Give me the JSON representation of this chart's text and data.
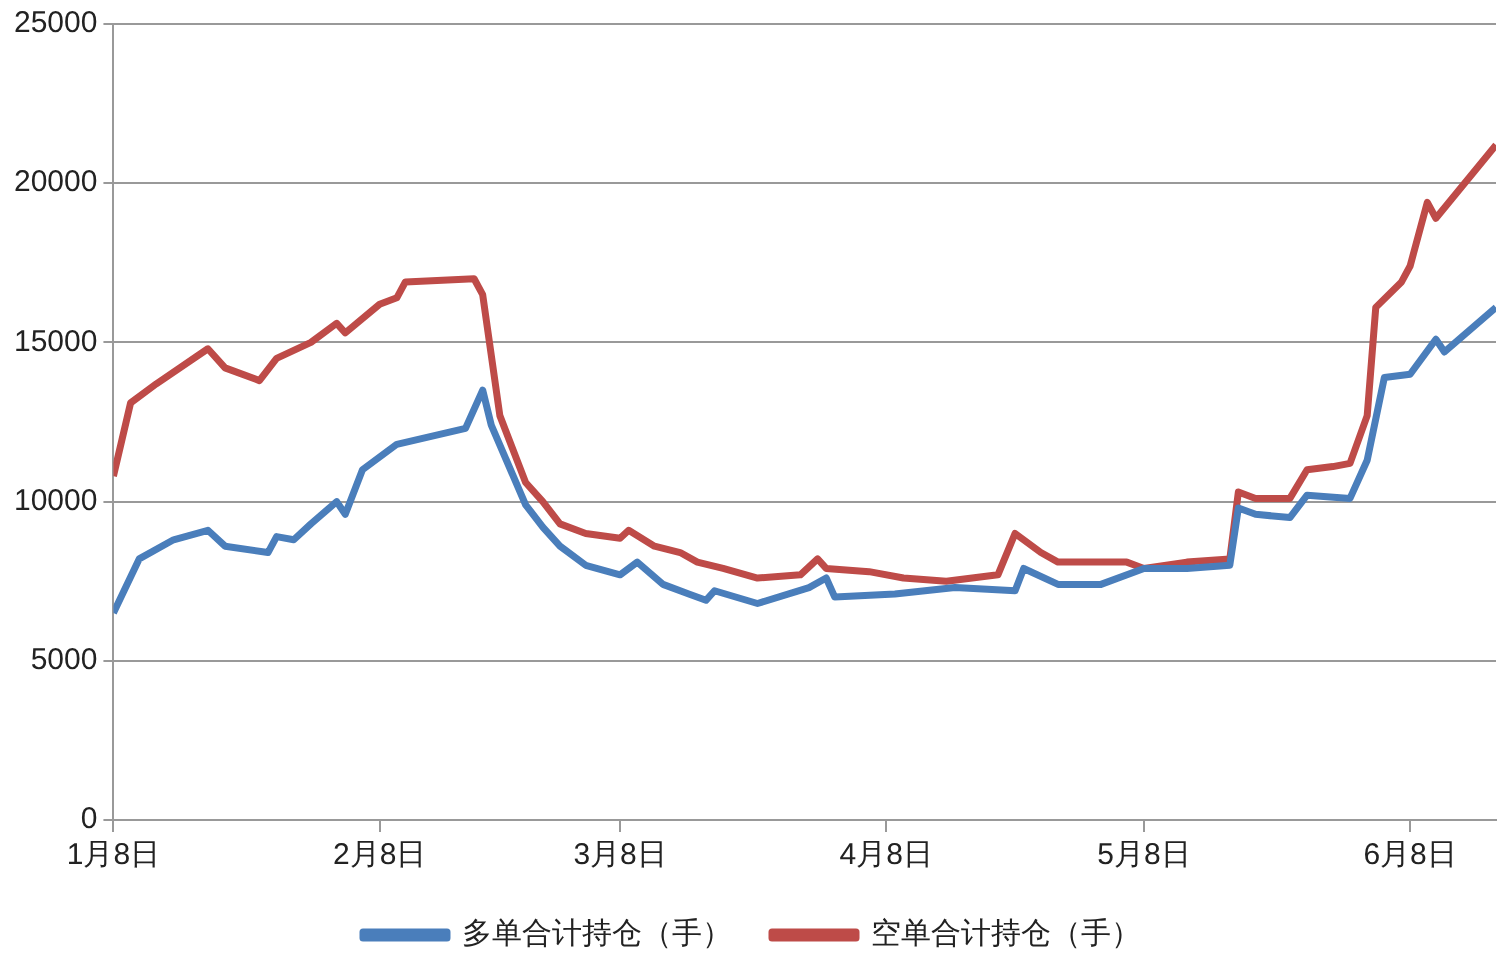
{
  "chart_data": {
    "type": "line",
    "x": [
      "--01-08",
      "--01-10",
      "--01-13",
      "--01-19",
      "--01-21",
      "--01-25",
      "--01-27",
      "--01-31",
      "--02-03",
      "--02-04",
      "--02-08",
      "--02-10",
      "--02-11",
      "--02-19",
      "--02-20",
      "--02-22",
      "--02-25",
      "--02-27",
      "--03-01",
      "--03-04",
      "--03-08",
      "--03-09",
      "--03-12",
      "--03-15",
      "--03-17",
      "--03-20",
      "--03-24",
      "--03-29",
      "--03-31",
      "--04-01",
      "--04-06",
      "--04-10",
      "--04-15",
      "--04-21",
      "--04-23",
      "--04-26",
      "--04-28",
      "--05-06",
      "--05-08",
      "--05-13",
      "--05-18",
      "--05-19",
      "--05-21",
      "--05-25",
      "--05-27",
      "--05-30",
      "--06-01",
      "--06-03",
      "--06-04",
      "--06-07",
      "--06-08",
      "--06-10",
      "--06-11",
      "--06-18"
    ],
    "series": [
      {
        "name": "多单合计持仓（手）",
        "color": "#4a7ebb",
        "x": [
          "--01-08",
          "--01-11",
          "--01-15",
          "--01-19",
          "--01-21",
          "--01-26",
          "--01-27",
          "--01-29",
          "--01-31",
          "--02-03",
          "--02-04",
          "--02-06",
          "--02-10",
          "--02-18",
          "--02-20",
          "--02-21",
          "--02-25",
          "--02-27",
          "--03-01",
          "--03-04",
          "--03-08",
          "--03-10",
          "--03-13",
          "--03-16",
          "--03-18",
          "--03-19",
          "--03-24",
          "--03-30",
          "--04-01",
          "--04-02",
          "--04-09",
          "--04-16",
          "--04-23",
          "--04-24",
          "--04-28",
          "--05-03",
          "--05-08",
          "--05-13",
          "--05-18",
          "--05-19",
          "--05-21",
          "--05-25",
          "--05-27",
          "--06-01",
          "--06-03",
          "--06-05",
          "--06-08",
          "--06-11",
          "--06-12",
          "--06-18"
        ],
        "values": [
          6500,
          8200,
          8800,
          9100,
          8600,
          8400,
          8900,
          8800,
          9300,
          10000,
          9600,
          11000,
          11800,
          12300,
          13500,
          12400,
          9900,
          9200,
          8600,
          8000,
          7700,
          8100,
          7400,
          7100,
          6900,
          7200,
          6800,
          7300,
          7600,
          7000,
          7100,
          7300,
          7200,
          7900,
          7400,
          7400,
          7900,
          7900,
          8000,
          9800,
          9600,
          9500,
          10200,
          10100,
          11300,
          13900,
          14000,
          15100,
          14700,
          16100
        ]
      },
      {
        "name": "空单合计持仓（手）",
        "color": "#be4b48",
        "values": [
          10800,
          13100,
          13700,
          14800,
          14200,
          13800,
          14500,
          15000,
          15600,
          15300,
          16200,
          16400,
          16900,
          17000,
          16500,
          12700,
          10600,
          10000,
          9300,
          9000,
          8850,
          9100,
          8600,
          8400,
          8100,
          7900,
          7600,
          7700,
          8200,
          7900,
          7800,
          7600,
          7500,
          7700,
          9000,
          8400,
          8100,
          8100,
          7900,
          8100,
          8200,
          10300,
          10100,
          10100,
          11000,
          11100,
          11200,
          12700,
          16100,
          16900,
          17400,
          19400,
          18900,
          21200
        ]
      }
    ],
    "xlim": [
      "--01-08",
      "--06-18"
    ],
    "xticks": [
      {
        "value": "--01-08",
        "label": "1月8日"
      },
      {
        "value": "--02-08",
        "label": "2月8日"
      },
      {
        "value": "--03-08",
        "label": "3月8日"
      },
      {
        "value": "--04-08",
        "label": "4月8日"
      },
      {
        "value": "--05-08",
        "label": "5月8日"
      },
      {
        "value": "--06-08",
        "label": "6月8日"
      }
    ],
    "ylim": [
      0,
      25000
    ],
    "yticks": [
      0,
      5000,
      10000,
      15000,
      20000,
      25000
    ],
    "grid": "y",
    "legend": "bottom",
    "marker": "none",
    "line_style": "solid"
  }
}
